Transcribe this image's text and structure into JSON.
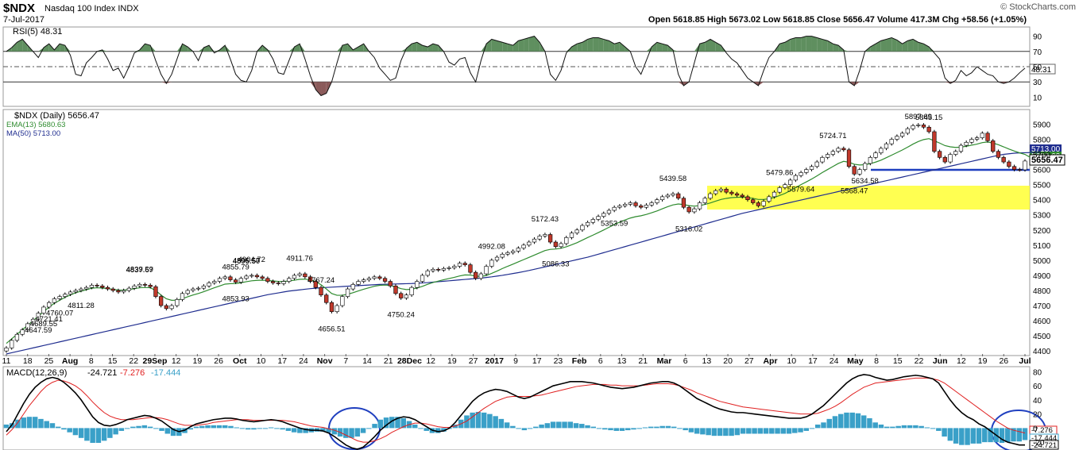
{
  "header": {
    "symbol": "$NDX",
    "name": "Nasdaq 100 Index  INDX",
    "date": "7-Jul-2017",
    "ohlc": "Open 5618.85  High 5673.02  Low 5618.85  Close 5656.47  Volume 417.3M  Chg +58.56 (+1.05%)",
    "copyright": "© StockCharts.com"
  },
  "rsi": {
    "label": "RSI(5) 48.31",
    "value_box": "48.31",
    "ticks": [
      "90",
      "70",
      "50",
      "30",
      "10"
    ]
  },
  "price": {
    "label": "$NDX (Daily) 5656.47",
    "ema_label": "EMA(13) 5680.63",
    "ma_label": "MA(50) 5713.00",
    "close_box": "5656.47",
    "ema_box": "5680.63",
    "ma_box": "5713.00",
    "ticks": [
      "5900",
      "5800",
      "5700",
      "5600",
      "5500",
      "5400",
      "5300",
      "5200",
      "5100",
      "5000",
      "4900",
      "4800",
      "4700",
      "4600",
      "4500",
      "4400"
    ]
  },
  "macd": {
    "label_name": "MACD(12,26,9)",
    "label_macd": "-24.721",
    "label_signal": "-7.276",
    "label_hist": "-17.444",
    "box_signal": "-7.276",
    "box_hist": "-17.444",
    "box_macd": "-24.721",
    "ticks": [
      "80",
      "60",
      "40",
      "20",
      "0",
      "-20"
    ]
  },
  "xaxis": [
    "11",
    "18",
    "25",
    "Aug",
    "8",
    "15",
    "22",
    "29Sep",
    "12",
    "19",
    "26",
    "Oct",
    "10",
    "17",
    "24",
    "Nov",
    "7",
    "14",
    "21",
    "28Dec",
    "12",
    "19",
    "27",
    "2017",
    "9",
    "17",
    "23",
    "Feb",
    "6",
    "13",
    "21",
    "Mar",
    "6",
    "13",
    "20",
    "27",
    "Apr",
    "10",
    "17",
    "24",
    "May",
    "8",
    "15",
    "22",
    "Jun",
    "12",
    "19",
    "26",
    "Jul"
  ],
  "colors": {
    "up_candle": "#ffffff",
    "down_candle": "#c0392b",
    "ema": "#2e8b2e",
    "ma": "#1f2d8f",
    "rsi_fill": "#5f8f5f",
    "rsi_low_fill": "#8b5a5a",
    "macd_hist": "#3aa0c8",
    "signal": "#e02020",
    "zone": "#ffff33",
    "support": "#1f3fbf"
  },
  "chart_data": {
    "type": "candlestick",
    "series": [
      {
        "name": "$NDX (Daily)",
        "values": [
          4420,
          4470,
          4510,
          4540,
          4580,
          4610,
          4650,
          4690,
          4720,
          4745,
          4760,
          4775,
          4790,
          4800,
          4810,
          4820,
          4835,
          4830,
          4820,
          4810,
          4800,
          4790,
          4800,
          4815,
          4830,
          4840,
          4835,
          4825,
          4760,
          4700,
          4680,
          4700,
          4740,
          4780,
          4800,
          4810,
          4815,
          4830,
          4850,
          4860,
          4880,
          4890,
          4870,
          4855,
          4880,
          4895,
          4900,
          4890,
          4880,
          4860,
          4850,
          4845,
          4860,
          4880,
          4900,
          4910,
          4890,
          4860,
          4820,
          4770,
          4720,
          4660,
          4700,
          4760,
          4810,
          4840,
          4860,
          4870,
          4880,
          4890,
          4880,
          4860,
          4830,
          4780,
          4750,
          4770,
          4820,
          4860,
          4900,
          4930,
          4940,
          4935,
          4945,
          4950,
          4960,
          4980,
          4970,
          4920,
          4880,
          4910,
          4960,
          5000,
          5020,
          5040,
          5050,
          5060,
          5080,
          5100,
          5120,
          5140,
          5160,
          5170,
          5120,
          5090,
          5110,
          5150,
          5180,
          5200,
          5230,
          5250,
          5270,
          5290,
          5310,
          5330,
          5350,
          5360,
          5370,
          5380,
          5360,
          5350,
          5365,
          5380,
          5400,
          5420,
          5430,
          5440,
          5410,
          5350,
          5320,
          5340,
          5380,
          5410,
          5440,
          5460,
          5470,
          5450,
          5440,
          5430,
          5420,
          5400,
          5380,
          5360,
          5390,
          5420,
          5450,
          5480,
          5500,
          5530,
          5560,
          5580,
          5600,
          5620,
          5650,
          5680,
          5700,
          5720,
          5740,
          5730,
          5620,
          5570,
          5600,
          5640,
          5680,
          5710,
          5740,
          5770,
          5800,
          5820,
          5840,
          5870,
          5890,
          5895,
          5880,
          5850,
          5720,
          5680,
          5650,
          5700,
          5720,
          5760,
          5780,
          5800,
          5810,
          5840,
          5790,
          5720,
          5680,
          5650,
          5620,
          5600,
          5598,
          5656
        ]
      },
      {
        "name": "EMA(13)",
        "values": [
          4450,
          4480,
          4510,
          4540,
          4570,
          4600,
          4630,
          4660,
          4690,
          4715,
          4735,
          4755,
          4770,
          4785,
          4795,
          4805,
          4815,
          4818,
          4816,
          4812,
          4808,
          4802,
          4802,
          4806,
          4812,
          4818,
          4820,
          4818,
          4800,
          4770,
          4745,
          4735,
          4736,
          4745,
          4758,
          4770,
          4780,
          4792,
          4805,
          4818,
          4830,
          4842,
          4845,
          4846,
          4851,
          4858,
          4864,
          4867,
          4868,
          4866,
          4863,
          4860,
          4860,
          4863,
          4868,
          4874,
          4875,
          4870,
          4858,
          4838,
          4810,
          4780,
          4768,
          4768,
          4775,
          4785,
          4797,
          4808,
          4818,
          4828,
          4834,
          4836,
          4833,
          4824,
          4812,
          4806,
          4808,
          4816,
          4827,
          4841,
          4853,
          4862,
          4871,
          4879,
          4887,
          4896,
          4903,
          4902,
          4895,
          4893,
          4899,
          4913,
          4928,
          4945,
          4960,
          4974,
          4989,
          5004,
          5019,
          5034,
          5049,
          5064,
          5072,
          5074,
          5079,
          5089,
          5102,
          5116,
          5133,
          5150,
          5166,
          5183,
          5200,
          5218,
          5236,
          5252,
          5266,
          5279,
          5288,
          5294,
          5303,
          5314,
          5326,
          5340,
          5354,
          5366,
          5372,
          5368,
          5361,
          5358,
          5361,
          5369,
          5379,
          5391,
          5402,
          5409,
          5414,
          5416,
          5417,
          5414,
          5409,
          5402,
          5402,
          5407,
          5415,
          5428,
          5442,
          5460,
          5480,
          5500,
          5518,
          5537,
          5558,
          5580,
          5600,
          5620,
          5640,
          5654,
          5648,
          5635,
          5630,
          5632,
          5639,
          5649,
          5662,
          5678,
          5695,
          5712,
          5729,
          5748,
          5768,
          5785,
          5798,
          5804,
          5790,
          5775,
          5758,
          5750,
          5746,
          5748,
          5754,
          5761,
          5768,
          5778,
          5782,
          5775,
          5764,
          5750,
          5735,
          5722,
          5710,
          5700,
          5680
        ]
      },
      {
        "name": "MA(50)",
        "values": [
          4380,
          4388,
          4396,
          4404,
          4412,
          4420,
          4428,
          4436,
          4444,
          4452,
          4460,
          4468,
          4476,
          4484,
          4492,
          4500,
          4508,
          4516,
          4524,
          4532,
          4540,
          4548,
          4556,
          4564,
          4572,
          4580,
          4588,
          4596,
          4604,
          4612,
          4620,
          4628,
          4636,
          4644,
          4652,
          4660,
          4668,
          4676,
          4684,
          4692,
          4700,
          4708,
          4716,
          4724,
          4732,
          4740,
          4748,
          4756,
          4764,
          4772,
          4778,
          4784,
          4790,
          4796,
          4800,
          4804,
          4808,
          4812,
          4815,
          4818,
          4820,
          4822,
          4824,
          4826,
          4828,
          4830,
          4832,
          4834,
          4836,
          4838,
          4840,
          4841,
          4842,
          4843,
          4844,
          4845,
          4846,
          4848,
          4850,
          4852,
          4855,
          4858,
          4861,
          4864,
          4867,
          4870,
          4873,
          4876,
          4879,
          4882,
          4886,
          4890,
          4895,
          4900,
          4906,
          4912,
          4918,
          4925,
          4932,
          4940,
          4948,
          4956,
          4964,
          4972,
          4980,
          4988,
          4996,
          5004,
          5012,
          5020,
          5030,
          5040,
          5050,
          5060,
          5070,
          5080,
          5090,
          5100,
          5110,
          5120,
          5130,
          5140,
          5150,
          5160,
          5170,
          5180,
          5190,
          5200,
          5210,
          5220,
          5230,
          5240,
          5250,
          5260,
          5270,
          5280,
          5290,
          5300,
          5310,
          5318,
          5326,
          5334,
          5342,
          5350,
          5358,
          5366,
          5374,
          5382,
          5390,
          5398,
          5406,
          5414,
          5422,
          5430,
          5438,
          5446,
          5454,
          5462,
          5470,
          5478,
          5486,
          5494,
          5502,
          5510,
          5518,
          5526,
          5534,
          5542,
          5550,
          5558,
          5566,
          5574,
          5582,
          5590,
          5598,
          5606,
          5614,
          5622,
          5630,
          5638,
          5646,
          5654,
          5662,
          5670,
          5678,
          5686,
          5694,
          5700,
          5704,
          5708,
          5710,
          5711,
          5712,
          5712,
          5713
        ]
      }
    ],
    "annotations": [
      "5897.69",
      "5845.15",
      "5724.71",
      "5634.58",
      "5579.64",
      "5568.47",
      "5479.86",
      "5439.58",
      "5353.59",
      "5316.02",
      "5172.43",
      "5086.33",
      "4992.08",
      "4911.76",
      "4904.72",
      "4896.57",
      "4895.50",
      "4855.79",
      "4853.93",
      "4839.59",
      "4837.67",
      "4811.28",
      "4767.24",
      "4760.07",
      "4750.24",
      "4721.41",
      "4689.55",
      "4656.51",
      "4647.59"
    ],
    "ylim": [
      4380,
      5960
    ],
    "rsi_values": [
      70,
      75,
      82,
      86,
      78,
      70,
      62,
      75,
      80,
      72,
      80,
      78,
      65,
      40,
      38,
      55,
      62,
      70,
      72,
      60,
      45,
      48,
      35,
      50,
      68,
      72,
      80,
      78,
      58,
      40,
      28,
      40,
      60,
      80,
      76,
      70,
      58,
      75,
      78,
      68,
      72,
      78,
      60,
      40,
      32,
      30,
      45,
      70,
      78,
      72,
      60,
      42,
      40,
      58,
      76,
      80,
      60,
      38,
      20,
      12,
      15,
      30,
      55,
      78,
      80,
      72,
      76,
      80,
      70,
      62,
      48,
      40,
      32,
      35,
      58,
      74,
      80,
      82,
      78,
      76,
      80,
      78,
      70,
      56,
      52,
      60,
      62,
      42,
      30,
      58,
      80,
      86,
      84,
      82,
      80,
      78,
      84,
      86,
      88,
      90,
      82,
      70,
      40,
      32,
      45,
      68,
      76,
      80,
      82,
      86,
      88,
      88,
      86,
      84,
      80,
      82,
      76,
      70,
      50,
      40,
      58,
      76,
      82,
      80,
      78,
      72,
      40,
      25,
      30,
      55,
      80,
      82,
      86,
      82,
      78,
      68,
      60,
      55,
      45,
      35,
      30,
      25,
      45,
      62,
      70,
      80,
      82,
      86,
      88,
      88,
      90,
      90,
      88,
      86,
      84,
      80,
      78,
      72,
      30,
      25,
      45,
      70,
      76,
      80,
      84,
      86,
      88,
      85,
      80,
      84,
      86,
      82,
      80,
      76,
      68,
      60,
      35,
      28,
      32,
      45,
      38,
      42,
      50,
      45,
      40,
      38,
      30,
      28,
      30,
      35,
      42,
      48
    ],
    "macd_values": [
      -5,
      5,
      20,
      35,
      48,
      58,
      65,
      70,
      72,
      70,
      65,
      58,
      50,
      40,
      28,
      16,
      8,
      4,
      3,
      5,
      8,
      12,
      14,
      16,
      18,
      17,
      14,
      10,
      4,
      -2,
      -5,
      -3,
      2,
      6,
      8,
      10,
      12,
      13,
      14,
      14,
      13,
      11,
      10,
      9,
      10,
      11,
      12,
      11,
      9,
      6,
      3,
      0,
      -2,
      -3,
      -3,
      -4,
      -7,
      -12,
      -18,
      -24,
      -28,
      -30,
      -27,
      -20,
      -12,
      -3,
      4,
      10,
      14,
      16,
      15,
      12,
      7,
      2,
      -3,
      -5,
      -4,
      0,
      8,
      18,
      28,
      38,
      45,
      50,
      53,
      55,
      54,
      52,
      48,
      44,
      42,
      44,
      48,
      52,
      56,
      60,
      62,
      64,
      66,
      66,
      66,
      65,
      64,
      62,
      60,
      58,
      57,
      56,
      57,
      58,
      60,
      62,
      64,
      65,
      66,
      66,
      64,
      60,
      54,
      48,
      42,
      38,
      34,
      30,
      27,
      25,
      23,
      22,
      22,
      21,
      20,
      19,
      18,
      17,
      16,
      15,
      14,
      14,
      14,
      16,
      20,
      26,
      32,
      40,
      48,
      56,
      64,
      70,
      74,
      76,
      75,
      72,
      70,
      68,
      69,
      71,
      73,
      74,
      75,
      74,
      72,
      70,
      64,
      52,
      40,
      30,
      22,
      16,
      12,
      6,
      2,
      -4,
      -10,
      -16,
      -20,
      -22,
      -24,
      -24
    ],
    "signal_values": [
      -10,
      -2,
      8,
      20,
      32,
      42,
      52,
      60,
      65,
      68,
      67,
      64,
      60,
      54,
      46,
      37,
      29,
      22,
      17,
      14,
      12,
      12,
      12,
      13,
      14,
      15,
      15,
      14,
      12,
      9,
      6,
      4,
      4,
      4,
      5,
      6,
      8,
      9,
      10,
      11,
      12,
      12,
      12,
      11,
      11,
      11,
      11,
      11,
      11,
      10,
      9,
      7,
      5,
      3,
      2,
      1,
      -1,
      -3,
      -6,
      -10,
      -14,
      -18,
      -20,
      -20,
      -18,
      -15,
      -11,
      -6,
      -2,
      2,
      5,
      7,
      7,
      6,
      4,
      2,
      1,
      1,
      3,
      6,
      10,
      16,
      22,
      28,
      33,
      38,
      41,
      44,
      45,
      45,
      45,
      45,
      46,
      47,
      49,
      51,
      53,
      55,
      57,
      59,
      60,
      61,
      62,
      62,
      62,
      61,
      61,
      60,
      60,
      60,
      60,
      61,
      62,
      63,
      63,
      63,
      62,
      60,
      57,
      54,
      50,
      47,
      44,
      41,
      38,
      36,
      34,
      32,
      30,
      29,
      28,
      27,
      26,
      25,
      24,
      23,
      22,
      21,
      20,
      20,
      20,
      21,
      24,
      27,
      31,
      36,
      42,
      48,
      53,
      58,
      61,
      64,
      65,
      66,
      67,
      68,
      69,
      70,
      71,
      71,
      71,
      70,
      68,
      64,
      58,
      52,
      46,
      40,
      34,
      28,
      22,
      16,
      10,
      5,
      0,
      -3,
      -5,
      -7
    ]
  }
}
